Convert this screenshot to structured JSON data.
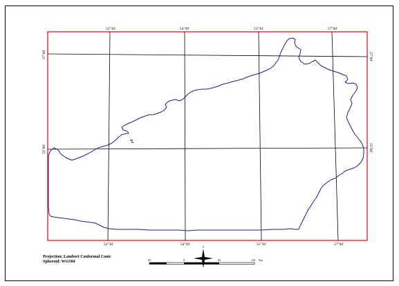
{
  "map": {
    "graticule": {
      "longitude_labels": [
        "52°30'",
        "54°00'",
        "55°30'",
        "57°00'"
      ],
      "latitude_labels": [
        "37°00'",
        "35°00'"
      ]
    },
    "colors": {
      "neatline": "#e0191b",
      "boundary": "#1c1c8c",
      "graticule": "#000000",
      "frame": "#000000"
    }
  },
  "legend": {
    "projection": "Projection: Lambert Conformal Conic",
    "spheroid": "Spheroid: WGS84"
  },
  "north_arrow": {
    "icon": "north-arrow-icon"
  },
  "scale_bar": {
    "labels": [
      "60",
      "0",
      "60",
      "120"
    ],
    "unit": "Km"
  }
}
